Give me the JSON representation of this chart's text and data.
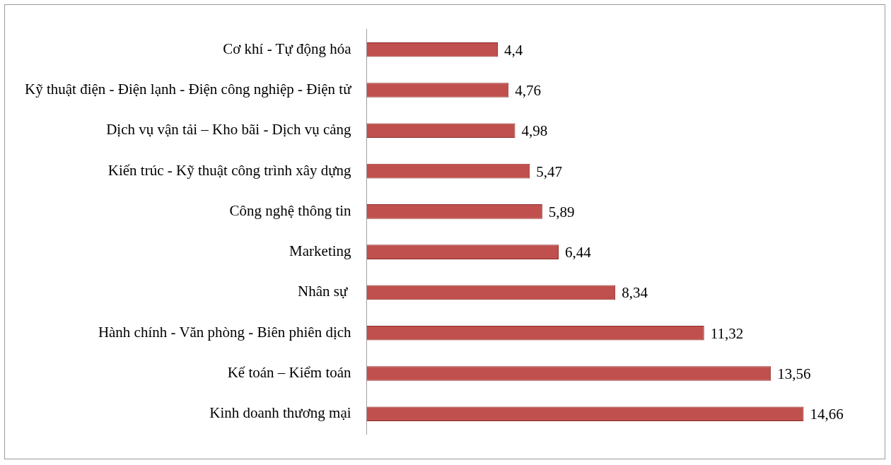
{
  "chart_data": {
    "type": "bar",
    "orientation": "horizontal",
    "categories": [
      "Cơ khí - Tự động hóa",
      "Kỹ thuật điện - Điện lạnh - Điện công nghiệp - Điện tử",
      "Dịch vụ vận tải – Kho bãi - Dịch vụ cảng",
      "Kiến trúc - Kỹ thuật công trình xây dựng",
      "Công nghệ thông tin",
      "Marketing",
      "Nhân sự ",
      "Hành chính - Văn phòng - Biên phiên dịch",
      "Kế toán – Kiểm toán",
      "Kinh doanh thương mại"
    ],
    "values": [
      4.4,
      4.76,
      4.98,
      5.47,
      5.89,
      6.44,
      8.34,
      11.32,
      13.56,
      14.66
    ],
    "value_labels": [
      "4,4",
      "4,76",
      "4,98",
      "5,47",
      "5,89",
      "6,44",
      "8,34",
      "11,32",
      "13,56",
      "14,66"
    ],
    "color": "#c0504d",
    "grid": false,
    "legend": false,
    "tick_labels": "y"
  }
}
